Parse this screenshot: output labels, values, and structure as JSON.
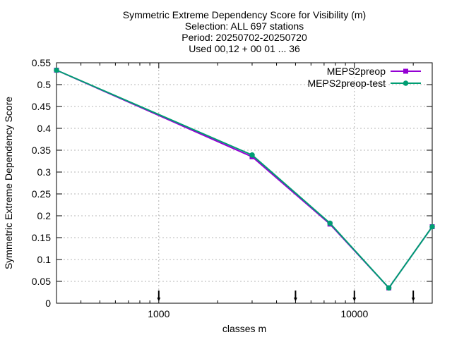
{
  "chart_data": {
    "type": "line",
    "title_lines": [
      "Symmetric Extreme Dependency Score  for Visibility (m)",
      "Selection: ALL    697 stations",
      "Period: 20250702-20250720",
      "Used 00,12 + 00 01 ... 36"
    ],
    "xlabel": "classes m",
    "ylabel": "Symmetric Extreme Dependency Score",
    "x_scale": "log",
    "xlim": [
      300,
      25000
    ],
    "ylim": [
      0,
      0.55
    ],
    "x_ticks": [
      {
        "value": 1000,
        "label": "1000"
      },
      {
        "value": 10000,
        "label": "10000"
      }
    ],
    "y_ticks": [
      {
        "value": 0,
        "label": "0"
      },
      {
        "value": 0.05,
        "label": "0.05"
      },
      {
        "value": 0.1,
        "label": "0.1"
      },
      {
        "value": 0.15,
        "label": "0.15"
      },
      {
        "value": 0.2,
        "label": "0.2"
      },
      {
        "value": 0.25,
        "label": "0.25"
      },
      {
        "value": 0.3,
        "label": "0.3"
      },
      {
        "value": 0.35,
        "label": "0.35"
      },
      {
        "value": 0.4,
        "label": "0.4"
      },
      {
        "value": 0.45,
        "label": "0.45"
      },
      {
        "value": 0.5,
        "label": "0.5"
      },
      {
        "value": 0.55,
        "label": "0.55"
      }
    ],
    "grid": true,
    "legend_position": "top-right",
    "x": [
      300,
      3000,
      7500,
      15000,
      25000
    ],
    "series": [
      {
        "name": "MEPS2preop",
        "color": "#9400d3",
        "marker": "square",
        "values": [
          0.533,
          0.335,
          0.181,
          0.035,
          0.175
        ]
      },
      {
        "name": "MEPS2preop-test",
        "color": "#009e73",
        "marker": "circle",
        "values": [
          0.533,
          0.339,
          0.183,
          0.035,
          0.175
        ]
      }
    ],
    "marker_arrows_x": [
      1000,
      5000,
      10000,
      20000
    ]
  }
}
